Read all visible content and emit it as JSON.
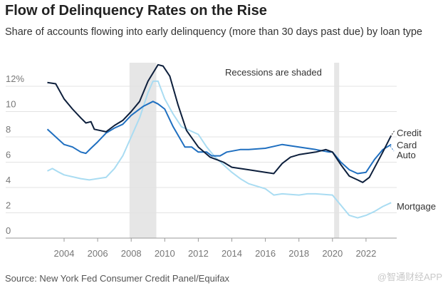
{
  "title": "Flow of Delinquency Rates on the Rise",
  "subtitle": "Share of accounts flowing into early delinquency (more than 30 days past due) by loan type",
  "source": "Source: New York Fed Consumer Credit Panel/Equifax",
  "watermark": "@智通财经APP",
  "chart_data": {
    "type": "line",
    "title": "Flow of Delinquency Rates on the Rise",
    "xlabel": "",
    "ylabel": "",
    "ylim": [
      0,
      14
    ],
    "xlim": [
      2001.2,
      2024
    ],
    "yticks": [
      0,
      2,
      4,
      6,
      8,
      10,
      12
    ],
    "ytick_labels": [
      "0",
      "2",
      "4",
      "6",
      "8",
      "10",
      "12%"
    ],
    "xticks": [
      2004,
      2006,
      2008,
      2010,
      2012,
      2014,
      2016,
      2018,
      2020,
      2022
    ],
    "xtick_labels": [
      "2004",
      "2006",
      "2008",
      "2010",
      "2012",
      "2014",
      "2016",
      "2018",
      "2020",
      "2022"
    ],
    "annotation": "Recessions are shaded",
    "recessions": [
      [
        2007.9,
        2009.5
      ],
      [
        2020.1,
        2020.4
      ]
    ],
    "grid": true,
    "series": [
      {
        "name": "Credit Card",
        "label_lines": [
          "Credit",
          "Card"
        ],
        "color": "#0d1f3c",
        "x": [
          2003,
          2003.5,
          2004,
          2004.5,
          2005,
          2005.3,
          2005.6,
          2005.8,
          2006.5,
          2007,
          2007.5,
          2008,
          2008.5,
          2009,
          2009.6,
          2009.9,
          2010.3,
          2010.8,
          2011.3,
          2012,
          2012.7,
          2013.5,
          2014,
          2015,
          2016,
          2016.5,
          2017,
          2017.5,
          2018,
          2019,
          2019.6,
          2020,
          2020.5,
          2021,
          2021.5,
          2021.8,
          2022.2,
          2023,
          2023.5
        ],
        "y": [
          12.3,
          12.2,
          11,
          10.2,
          9.5,
          9.1,
          9.2,
          8.6,
          8.4,
          8.9,
          9.3,
          10,
          10.8,
          12.4,
          13.7,
          13.6,
          12.8,
          10.5,
          8.5,
          7.2,
          6.4,
          6.0,
          5.6,
          5.4,
          5.2,
          5.1,
          5.9,
          6.4,
          6.6,
          6.8,
          7.0,
          6.8,
          5.8,
          4.9,
          4.6,
          4.4,
          4.8,
          6.8,
          8.1
        ]
      },
      {
        "name": "Auto",
        "label_lines": [
          "Auto"
        ],
        "color": "#1f6fc0",
        "x": [
          2003,
          2003.5,
          2004,
          2004.5,
          2005,
          2005.3,
          2005.6,
          2006,
          2006.5,
          2007,
          2007.5,
          2008,
          2008.7,
          2009.3,
          2009.6,
          2010,
          2010.5,
          2011.2,
          2011.6,
          2012,
          2012.5,
          2012.8,
          2013.3,
          2013.7,
          2014.5,
          2015,
          2016,
          2017,
          2018,
          2019,
          2019.8,
          2020,
          2020.5,
          2021,
          2021.5,
          2022,
          2022.5,
          2023,
          2023.5
        ],
        "y": [
          8.6,
          8.0,
          7.4,
          7.2,
          6.8,
          6.7,
          7.1,
          7.6,
          8.3,
          8.7,
          9.0,
          9.7,
          10.4,
          10.8,
          10.6,
          10.2,
          8.8,
          7.2,
          7.2,
          6.8,
          6.8,
          6.5,
          6.5,
          6.8,
          7.0,
          7.0,
          7.1,
          7.4,
          7.2,
          7.0,
          6.8,
          6.8,
          6.0,
          5.4,
          5.1,
          5.2,
          6.2,
          7.0,
          7.4
        ]
      },
      {
        "name": "Mortgage",
        "label_lines": [
          "Mortgage"
        ],
        "color": "#a9dcf2",
        "x": [
          2003,
          2003.3,
          2003.7,
          2004,
          2005,
          2005.5,
          2006.5,
          2007,
          2007.5,
          2008,
          2008.5,
          2009,
          2009.3,
          2009.6,
          2010,
          2010.5,
          2011,
          2012,
          2012.5,
          2013,
          2013.5,
          2014,
          2014.5,
          2015,
          2016,
          2016.5,
          2017,
          2018,
          2018.5,
          2019,
          2020,
          2020.5,
          2021,
          2021.5,
          2022,
          2022.5,
          2023,
          2023.5
        ],
        "y": [
          5.3,
          5.5,
          5.2,
          5.0,
          4.7,
          4.6,
          4.8,
          5.5,
          6.5,
          8.0,
          9.5,
          11.5,
          12.4,
          12.4,
          11.0,
          9.8,
          8.8,
          8.2,
          7.2,
          6.4,
          5.8,
          5.2,
          4.7,
          4.3,
          3.9,
          3.4,
          3.5,
          3.4,
          3.5,
          3.5,
          3.4,
          2.6,
          1.8,
          1.6,
          1.8,
          2.1,
          2.5,
          2.8
        ]
      }
    ]
  }
}
